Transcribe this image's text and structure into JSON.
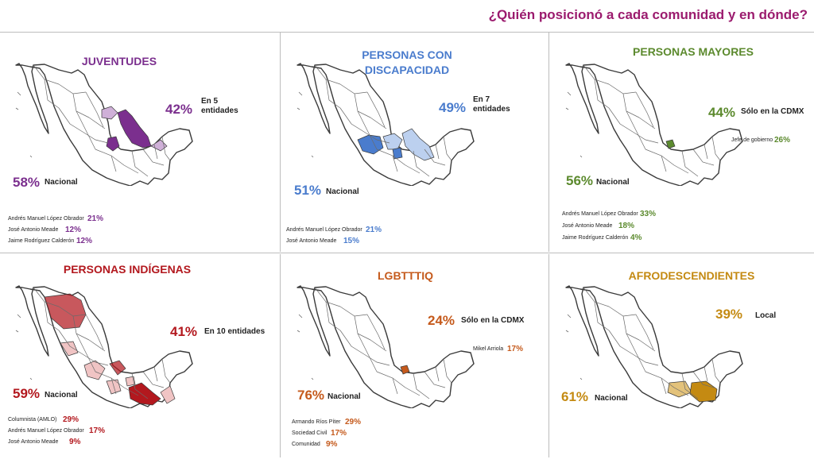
{
  "title": "¿Quién posicionó a cada comunidad y en dónde?",
  "chart_data": [
    {
      "type": "map",
      "title": "JUVENTUDES",
      "color": "#7b2f8e",
      "highlight_color": "#cfb0d8",
      "states_pct": {
        "value": "42%",
        "label": "En 5 entidades"
      },
      "national_pct": {
        "value": "58%",
        "label": "Nacional"
      },
      "candidates": [
        {
          "name": "Andrés Manuel López Obrador",
          "value": "21%"
        },
        {
          "name": "José Antonio Meade",
          "value": "12%"
        },
        {
          "name": "Jaime Rodríguez Calderón",
          "value": "12%"
        }
      ]
    },
    {
      "type": "map",
      "title": "PERSONAS CON DISCAPACIDAD",
      "color": "#4a7ccd",
      "highlight_color": "#bcd0ef",
      "states_pct": {
        "value": "49%",
        "label": "En 7 entidades"
      },
      "national_pct": {
        "value": "51%",
        "label": "Nacional"
      },
      "candidates": [
        {
          "name": "Andrés Manuel López Obrador",
          "value": "21%"
        },
        {
          "name": "José Antonio Meade",
          "value": "15%"
        }
      ]
    },
    {
      "type": "map",
      "title": "PERSONAS MAYORES",
      "color": "#5c8a2e",
      "highlight_color": "#8fbf5a",
      "states_pct": {
        "value": "44%",
        "label": "Sólo en la CDMX"
      },
      "sub_note": {
        "name": "Jefe de gobierno",
        "value": "26%"
      },
      "national_pct": {
        "value": "56%",
        "label": "Nacional"
      },
      "candidates": [
        {
          "name": "Andrés Manuel López Obrador",
          "value": "33%"
        },
        {
          "name": "José Antonio Meade",
          "value": "18%"
        },
        {
          "name": "Jaime Rodríguez Calderón",
          "value": "4%"
        }
      ]
    },
    {
      "type": "map",
      "title": "PERSONAS INDÍGENAS",
      "color": "#b3181e",
      "highlight_color": "#f0c4c4",
      "states_pct": {
        "value": "41%",
        "label": "En 10 entidades"
      },
      "national_pct": {
        "value": "59%",
        "label": "Nacional"
      },
      "candidates": [
        {
          "name": "Columnista (AMLO)",
          "value": "29%"
        },
        {
          "name": "Andrés Manuel López Obrador",
          "value": "17%"
        },
        {
          "name": "José Antonio Meade",
          "value": "9%"
        }
      ]
    },
    {
      "type": "map",
      "title": "LGBTTTIQ",
      "color": "#c55a1c",
      "highlight_color": "#e89a66",
      "states_pct": {
        "value": "24%",
        "label": "Sólo en la CDMX"
      },
      "sub_note": {
        "name": "Mikel Arriola",
        "value": "17%"
      },
      "national_pct": {
        "value": "76%",
        "label": "Nacional"
      },
      "candidates": [
        {
          "name": "Armando Ríos Píter",
          "value": "29%"
        },
        {
          "name": "Sociedad Civil",
          "value": "17%"
        },
        {
          "name": "Comunidad",
          "value": "9%"
        }
      ]
    },
    {
      "type": "map",
      "title": "AFRODESCENDIENTES",
      "color": "#c48a12",
      "highlight_color": "#e3c27a",
      "states_pct": {
        "value": "39%",
        "label": "Local"
      },
      "national_pct": {
        "value": "61%",
        "label": "Nacional"
      },
      "candidates": []
    }
  ]
}
